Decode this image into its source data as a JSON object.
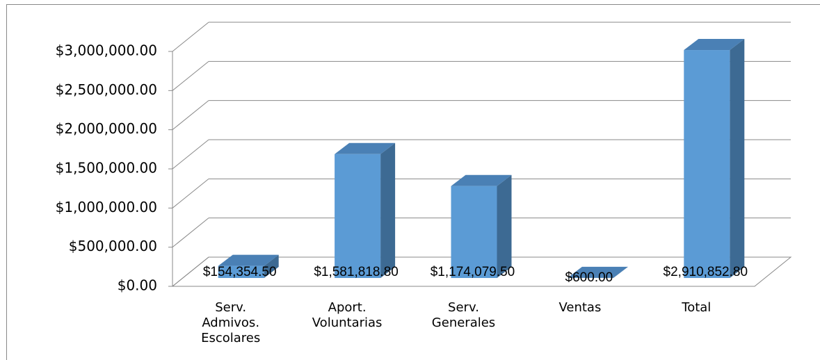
{
  "chart_data": {
    "type": "bar3d",
    "categories": [
      "Serv.\nAdmivos.\nEscolares",
      "Aport.\nVoluntarias",
      "Serv.\nGenerales",
      "Ventas",
      "Total"
    ],
    "values": [
      154354.5,
      1581818.8,
      1174079.5,
      600,
      2910852.8
    ],
    "value_labels": [
      "$154,354.50",
      "$1,581,818.80",
      "$1,174,079.50",
      "$600.00",
      "$2,910,852.80"
    ],
    "color": "#5b9bd5",
    "ylim": [
      0,
      3000000
    ],
    "yticks": [
      {
        "value": 0,
        "label": "$0.00"
      },
      {
        "value": 500000,
        "label": "$500,000.00"
      },
      {
        "value": 1000000,
        "label": "$1,000,000.00"
      },
      {
        "value": 1500000,
        "label": "$1,500,000.00"
      },
      {
        "value": 2000000,
        "label": "$2,000,000.00"
      },
      {
        "value": 2500000,
        "label": "$2,500,000.00"
      },
      {
        "value": 3000000,
        "label": "$3,000,000.00"
      }
    ],
    "grid": true
  }
}
